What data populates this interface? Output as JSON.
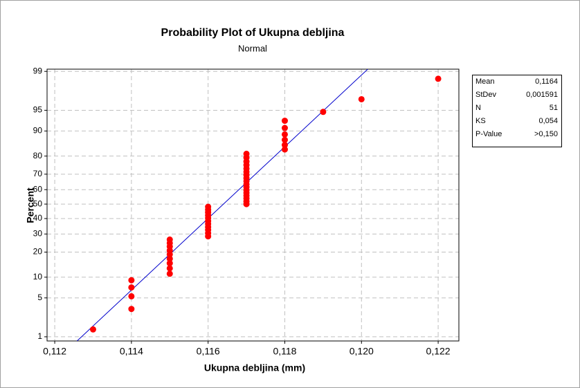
{
  "chart_data": {
    "type": "scatter",
    "title": "Probability Plot of Ukupna debljina",
    "subtitle": "Normal",
    "x_label": "Ukupna debljina (mm)",
    "y_label": "Percent",
    "yscale": "normal-probability",
    "grid": true,
    "color": "#ff0000",
    "fit_line_color": "#0000cc",
    "xlim": [
      0.1118,
      0.12254
    ],
    "xticks": [
      {
        "value": 0.112,
        "label": "0,112"
      },
      {
        "value": 0.114,
        "label": "0,114"
      },
      {
        "value": 0.116,
        "label": "0,116"
      },
      {
        "value": 0.118,
        "label": "0,118"
      },
      {
        "value": 0.12,
        "label": "0,120"
      },
      {
        "value": 0.122,
        "label": "0,122"
      }
    ],
    "ylim": [
      0.82,
      99.1
    ],
    "yticks": [
      1,
      5,
      10,
      20,
      30,
      40,
      50,
      60,
      70,
      80,
      90,
      95,
      99
    ],
    "x": [
      0.113,
      0.114,
      0.114,
      0.114,
      0.114,
      0.115,
      0.115,
      0.115,
      0.115,
      0.115,
      0.115,
      0.115,
      0.115,
      0.115,
      0.116,
      0.116,
      0.116,
      0.116,
      0.116,
      0.116,
      0.116,
      0.116,
      0.116,
      0.116,
      0.116,
      0.117,
      0.117,
      0.117,
      0.117,
      0.117,
      0.117,
      0.117,
      0.117,
      0.117,
      0.117,
      0.117,
      0.117,
      0.117,
      0.117,
      0.117,
      0.117,
      0.117,
      0.118,
      0.118,
      0.118,
      0.118,
      0.118,
      0.118,
      0.119,
      0.12,
      0.122
    ],
    "y": [
      1.4,
      3.3,
      5.3,
      7.2,
      9.1,
      11.1,
      13.0,
      15.0,
      16.9,
      18.9,
      20.8,
      22.8,
      24.7,
      26.7,
      28.6,
      30.5,
      32.5,
      34.4,
      36.4,
      38.3,
      40.3,
      42.2,
      44.2,
      46.1,
      48.1,
      50.0,
      51.9,
      53.9,
      55.8,
      57.8,
      59.7,
      61.7,
      63.6,
      65.6,
      67.5,
      69.5,
      71.4,
      73.3,
      75.3,
      77.2,
      79.2,
      81.1,
      83.1,
      85.0,
      87.0,
      88.9,
      90.9,
      92.8,
      94.7,
      96.7,
      98.6
    ],
    "stats": [
      {
        "name": "Mean",
        "value": 0.1164,
        "label": "0,1164"
      },
      {
        "name": "StDev",
        "value": 0.001591,
        "label": "0,001591"
      },
      {
        "name": "N",
        "value": 51,
        "label": "51"
      },
      {
        "name": "KS",
        "value": 0.054,
        "label": "0,054"
      },
      {
        "name": "P-Value",
        "value": 0.15,
        "label": ">0,150"
      }
    ]
  }
}
